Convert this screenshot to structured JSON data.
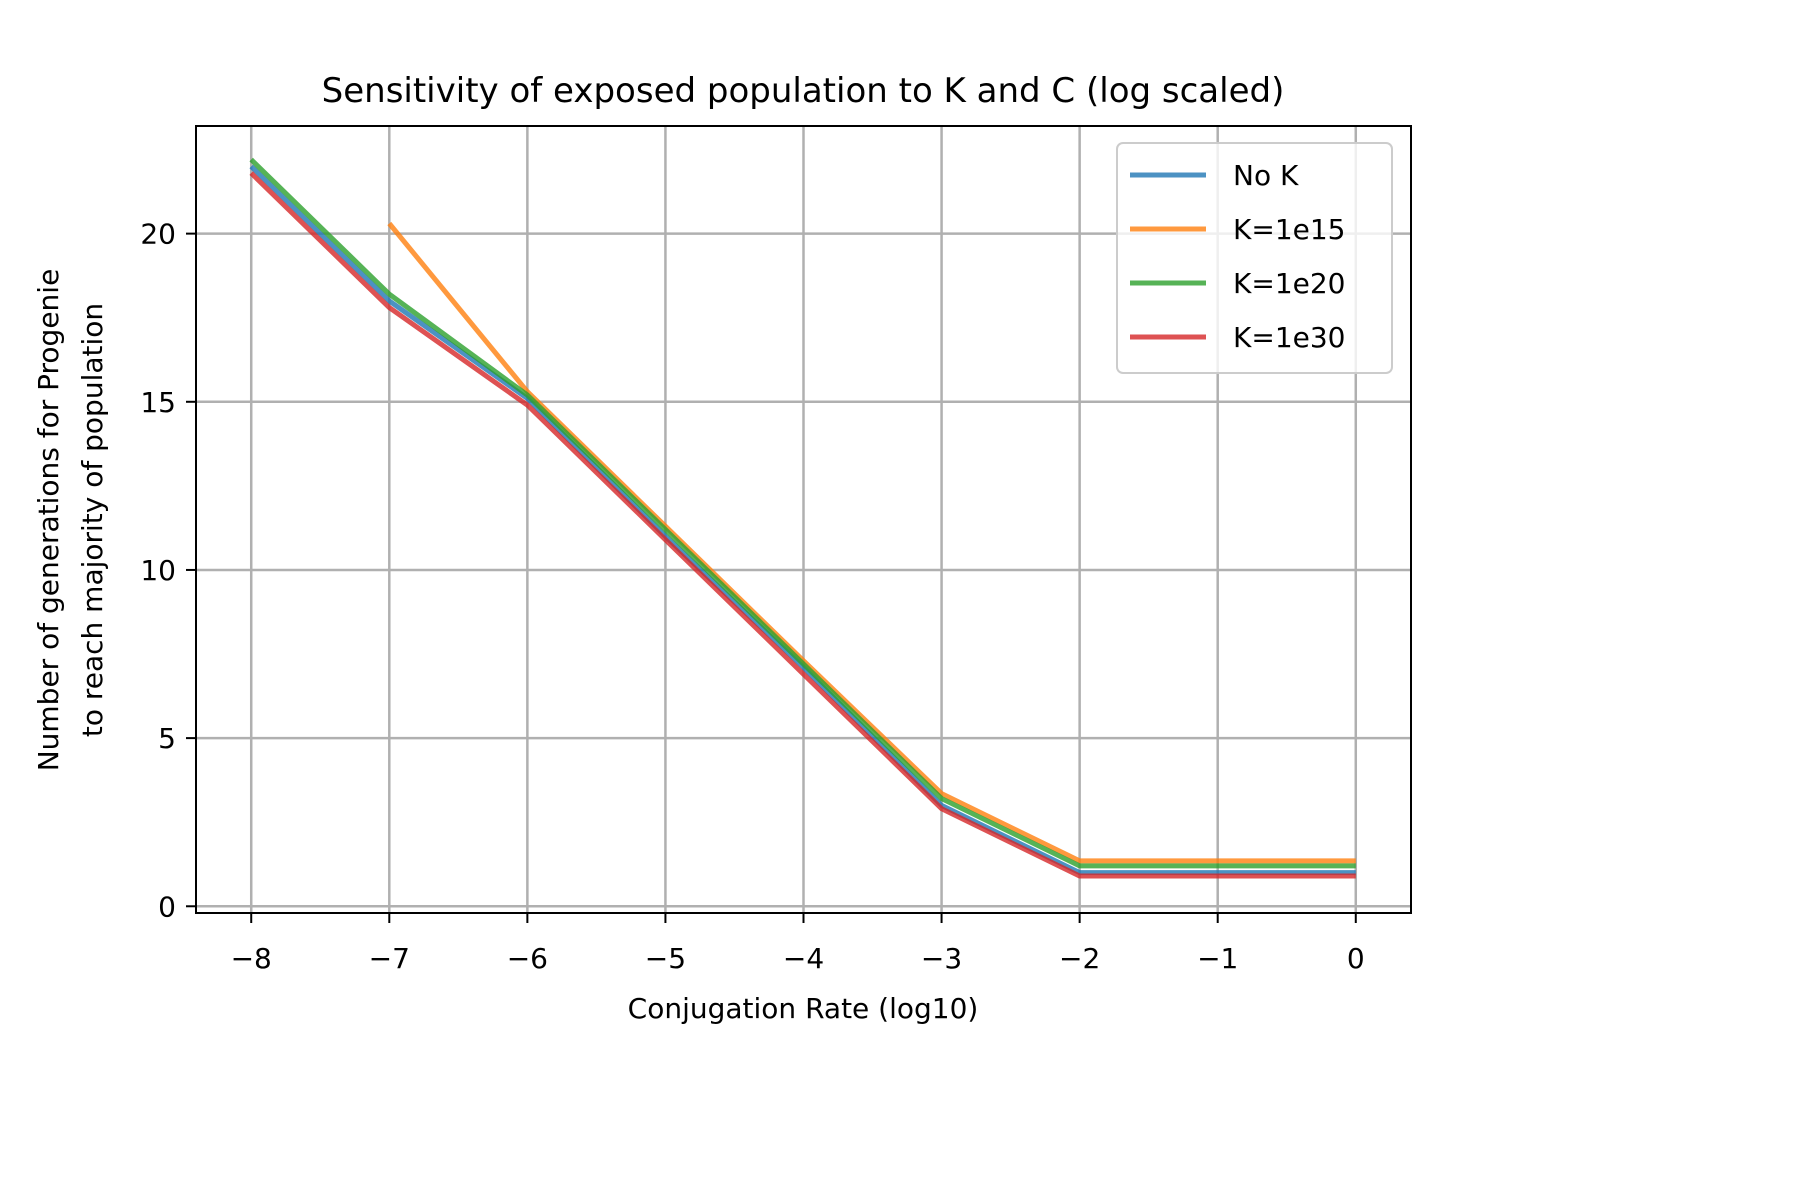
{
  "chart_data": {
    "type": "line",
    "title": "Sensitivity of exposed population to K and C (log scaled)",
    "xlabel": "Conjugation Rate (log10)",
    "ylabel_lines": [
      "Number of generations for Progenie",
      "to reach majority of population"
    ],
    "xlim": [
      -8.4,
      0.4
    ],
    "ylim": [
      -0.2,
      23.2
    ],
    "xticks": [
      -8,
      -7,
      -6,
      -5,
      -4,
      -3,
      -2,
      -1,
      0
    ],
    "xtick_labels": [
      "−8",
      "−7",
      "−6",
      "−5",
      "−4",
      "−3",
      "−2",
      "−1",
      "0"
    ],
    "yticks": [
      0,
      5,
      10,
      15,
      20
    ],
    "ytick_labels": [
      "0",
      "5",
      "10",
      "15",
      "20"
    ],
    "grid": true,
    "legend_position": "top-right",
    "series": [
      {
        "name": "No K",
        "color": "#1f77b4",
        "x": [
          -8,
          -7,
          -6,
          -5,
          -4,
          -3,
          -2,
          -1,
          0
        ],
        "y": [
          22.0,
          18.0,
          15.1,
          11.0,
          7.1,
          3.0,
          1.0,
          1.0,
          1.0
        ]
      },
      {
        "name": "K=1e15",
        "color": "#ff7f0e",
        "x": [
          -7,
          -6,
          -5,
          -4,
          -3,
          -2,
          -1,
          0
        ],
        "y": [
          20.3,
          15.3,
          11.3,
          7.3,
          3.35,
          1.35,
          1.35,
          1.35
        ]
      },
      {
        "name": "K=1e20",
        "color": "#2ca02c",
        "x": [
          -8,
          -7,
          -6,
          -5,
          -4,
          -3,
          -2,
          -1,
          0
        ],
        "y": [
          22.2,
          18.2,
          15.2,
          11.2,
          7.2,
          3.2,
          1.2,
          1.2,
          1.2
        ]
      },
      {
        "name": "K=1e30",
        "color": "#d62728",
        "x": [
          -8,
          -7,
          -6,
          -5,
          -4,
          -3,
          -2,
          -1,
          0
        ],
        "y": [
          21.8,
          17.8,
          14.9,
          10.9,
          6.9,
          2.9,
          0.9,
          0.9,
          0.9
        ]
      }
    ]
  }
}
